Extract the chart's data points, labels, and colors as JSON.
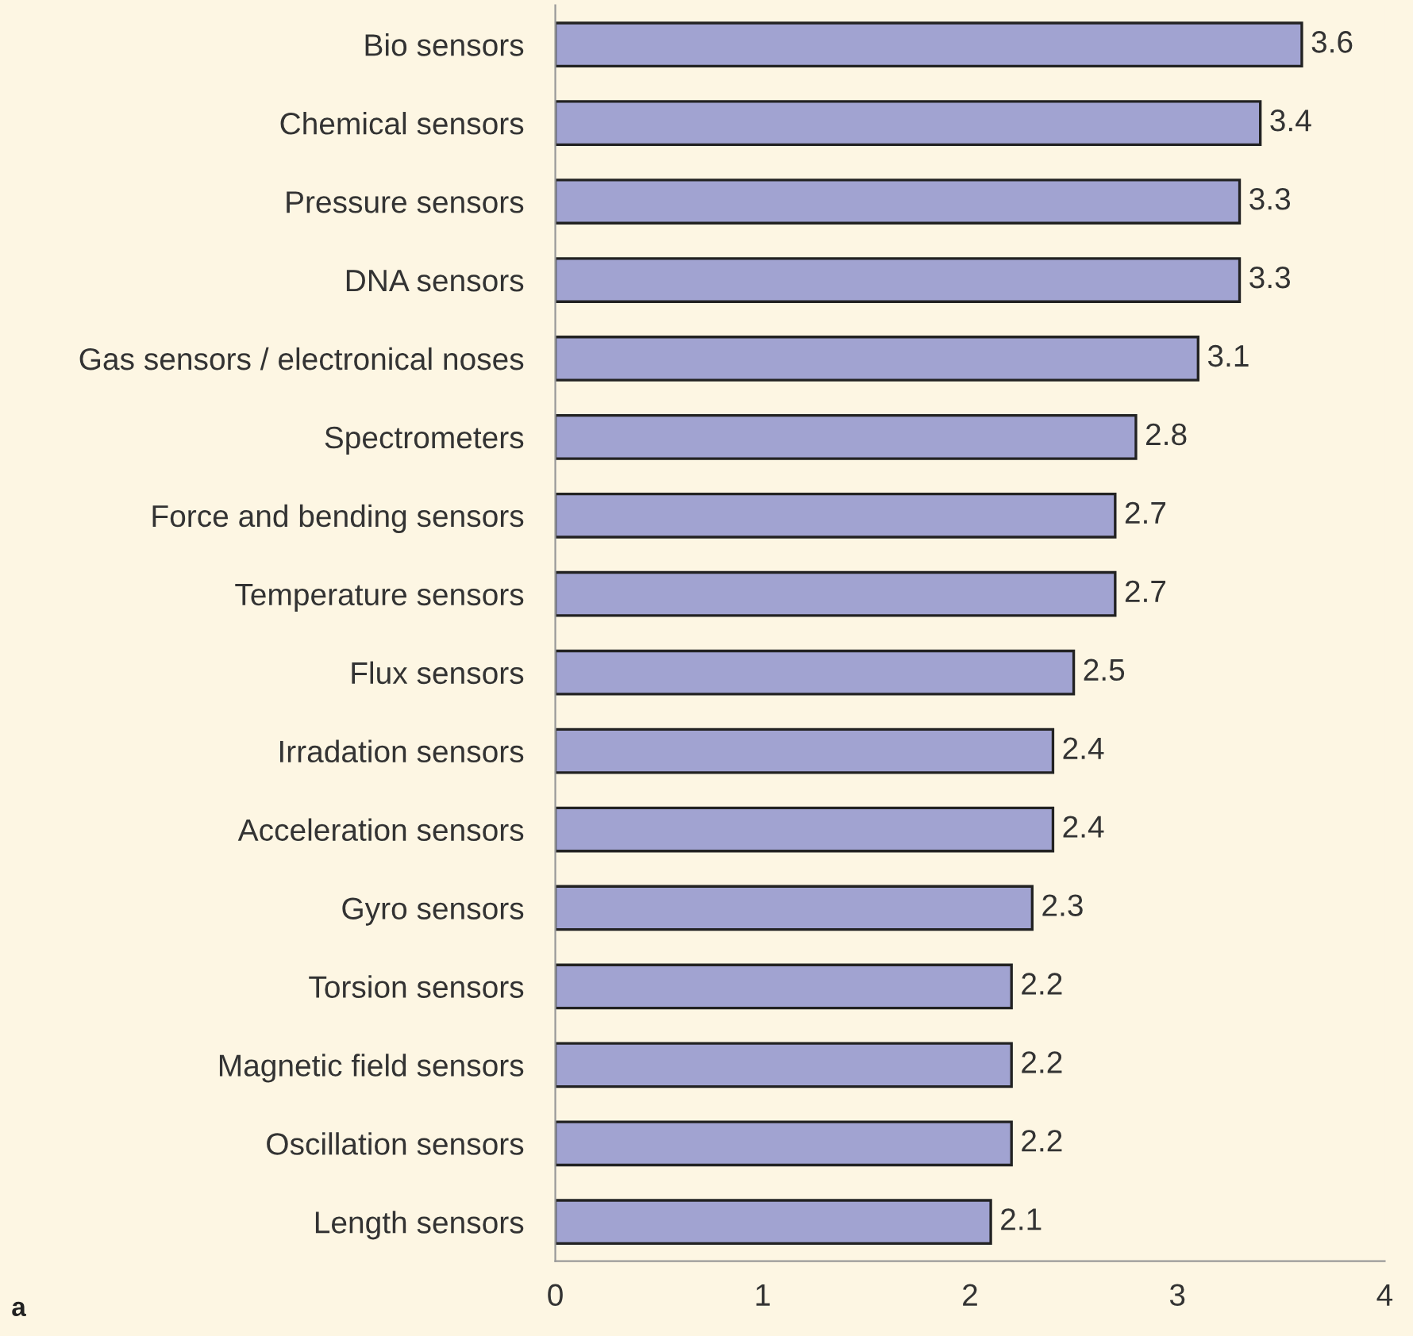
{
  "chart_data": {
    "type": "bar",
    "orientation": "horizontal",
    "categories": [
      "Bio sensors",
      "Chemical sensors",
      "Pressure sensors",
      "DNA sensors",
      "Gas sensors / electronical noses",
      "Spectrometers",
      "Force and bending sensors",
      "Temperature sensors",
      "Flux sensors",
      "Irradation sensors",
      "Acceleration sensors",
      "Gyro sensors",
      "Torsion sensors",
      "Magnetic field sensors",
      "Oscillation sensors",
      "Length sensors"
    ],
    "values": [
      3.6,
      3.4,
      3.3,
      3.3,
      3.1,
      2.8,
      2.7,
      2.7,
      2.5,
      2.4,
      2.4,
      2.3,
      2.2,
      2.2,
      2.2,
      2.1
    ],
    "color": "#a1a3d1",
    "data_labels": true,
    "xlim": [
      0,
      4
    ],
    "xticks": [
      0,
      1,
      2,
      3,
      4
    ],
    "grid": false,
    "legend": false,
    "annotations": [
      "a"
    ]
  }
}
